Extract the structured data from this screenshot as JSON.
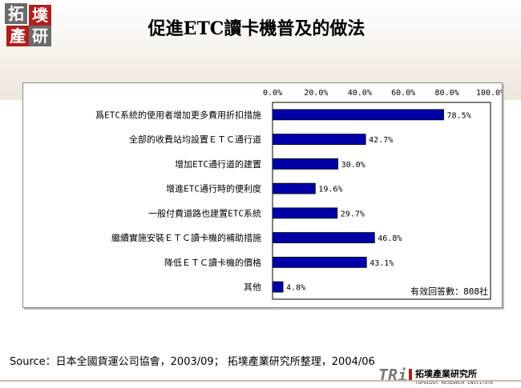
{
  "title": "促進ETC讀卡機普及的做法",
  "logo": {
    "chars": [
      "拓",
      "墣",
      "產",
      "研"
    ]
  },
  "chart_data": {
    "type": "bar",
    "orientation": "horizontal",
    "xlim": [
      0,
      100
    ],
    "ticks": [
      "0.0%",
      "20.0%",
      "40.0%",
      "60.0%",
      "80.0%",
      "100.0%"
    ],
    "tick_values": [
      0,
      20,
      40,
      60,
      80,
      100
    ],
    "categories": [
      "爲ETC系統的使用者增加更多費用折扣措施",
      "全部的收費站均設置ＥＴＣ通行道",
      "增加ETC通行道的建置",
      "增進ETC通行時的便利度",
      "一般付費道路也建置ETC系統",
      "繼續實施安裝ＥＴＣ讀卡機的補助措施",
      "降低ＥＴＣ讀卡機的價格",
      "其他"
    ],
    "values": [
      78.5,
      42.7,
      30.0,
      19.6,
      29.7,
      46.8,
      43.1,
      4.8
    ],
    "value_labels": [
      "78.5%",
      "42.7%",
      "30.0%",
      "19.6%",
      "29.7%",
      "46.8%",
      "43.1%",
      "4.8%"
    ],
    "bar_color": "#0000a8",
    "annotation": "有效回答數：808社",
    "grid": false
  },
  "source": "Source：日本全國貨運公司協會，2003/09；  拓墣產業研究所整理，2004/06",
  "brand": {
    "mark": "TRi",
    "name_cn": "拓墣產業研究所",
    "name_en": "TOPOLOGY RESEARCH INSTITUTE"
  }
}
